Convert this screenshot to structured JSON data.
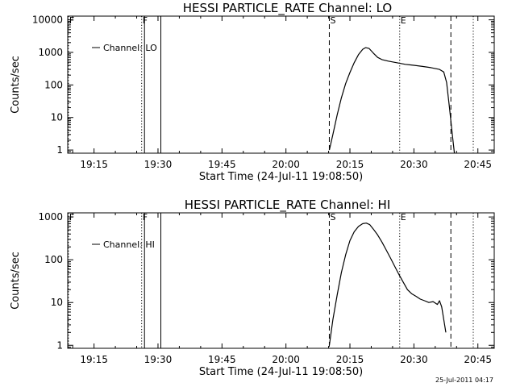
{
  "chart_data": [
    {
      "type": "line",
      "title": "HESSI PARTICLE_RATE Channel: LO",
      "xlabel": "Start Time (24-Jul-11 19:08:50)",
      "ylabel": "Counts/sec",
      "y_scale": "log",
      "ylim": [
        0.8,
        13000
      ],
      "xlim": [
        "19:08:50",
        "20:48:50"
      ],
      "x_tick_labels": [
        "19:15",
        "19:30",
        "19:45",
        "20:00",
        "20:15",
        "20:30",
        "20:45"
      ],
      "y_tick_labels": [
        "1",
        "10",
        "100",
        "1000",
        "10000"
      ],
      "legend": {
        "position": "top-left",
        "label": "Channel: LO"
      },
      "markers": [
        {
          "label": "F",
          "time": "19:09:00",
          "style": "dotted"
        },
        {
          "label": "F",
          "time": "19:26:10",
          "style": "dotted"
        },
        {
          "label": "",
          "time": "19:26:50",
          "style": "solid"
        },
        {
          "label": "",
          "time": "19:30:40",
          "style": "solid"
        },
        {
          "label": "S",
          "time": "20:10:10",
          "style": "dashed"
        },
        {
          "label": "E",
          "time": "20:26:40",
          "style": "dotted"
        },
        {
          "label": "",
          "time": "20:38:40",
          "style": "dashed"
        },
        {
          "label": "",
          "time": "20:43:55",
          "style": "dotted"
        }
      ],
      "series": [
        {
          "name": "Channel: LO",
          "x": [
            "20:10:10",
            "20:11:00",
            "20:12:00",
            "20:13:00",
            "20:14:00",
            "20:15:00",
            "20:16:00",
            "20:17:00",
            "20:18:00",
            "20:18:40",
            "20:19:30",
            "20:20:30",
            "20:21:30",
            "20:22:30",
            "20:24:00",
            "20:26:00",
            "20:28:00",
            "20:30:00",
            "20:32:00",
            "20:34:00",
            "20:36:00",
            "20:37:00",
            "20:37:40",
            "20:38:20",
            "20:39:00",
            "20:39:30"
          ],
          "y": [
            1,
            3,
            12,
            40,
            110,
            240,
            480,
            850,
            1250,
            1400,
            1320,
            950,
            700,
            600,
            540,
            480,
            430,
            400,
            370,
            340,
            300,
            250,
            120,
            20,
            3,
            0.8
          ]
        }
      ]
    },
    {
      "type": "line",
      "title": "HESSI PARTICLE_RATE Channel: HI",
      "xlabel": "Start Time (24-Jul-11 19:08:50)",
      "ylabel": "Counts/sec",
      "y_scale": "log",
      "ylim": [
        0.85,
        1250
      ],
      "xlim": [
        "19:08:50",
        "20:48:50"
      ],
      "x_tick_labels": [
        "19:15",
        "19:30",
        "19:45",
        "20:00",
        "20:15",
        "20:30",
        "20:45"
      ],
      "y_tick_labels": [
        "1",
        "10",
        "100",
        "1000"
      ],
      "legend": {
        "position": "top-left",
        "label": "Channel: HI"
      },
      "markers": [
        {
          "label": "F",
          "time": "19:09:00",
          "style": "dotted"
        },
        {
          "label": "F",
          "time": "19:26:10",
          "style": "dotted"
        },
        {
          "label": "",
          "time": "19:26:50",
          "style": "solid"
        },
        {
          "label": "",
          "time": "19:30:40",
          "style": "solid"
        },
        {
          "label": "S",
          "time": "20:10:10",
          "style": "dashed"
        },
        {
          "label": "E",
          "time": "20:26:40",
          "style": "dotted"
        },
        {
          "label": "",
          "time": "20:38:40",
          "style": "dashed"
        },
        {
          "label": "",
          "time": "20:43:55",
          "style": "dotted"
        }
      ],
      "series": [
        {
          "name": "Channel: HI",
          "x": [
            "20:10:10",
            "20:11:00",
            "20:12:00",
            "20:13:00",
            "20:14:00",
            "20:15:00",
            "20:16:00",
            "20:17:00",
            "20:18:00",
            "20:18:50",
            "20:19:40",
            "20:20:30",
            "20:21:30",
            "20:22:30",
            "20:23:30",
            "20:24:30",
            "20:25:30",
            "20:26:30",
            "20:27:30",
            "20:28:30",
            "20:29:30",
            "20:30:30",
            "20:31:30",
            "20:32:30",
            "20:33:30",
            "20:34:30",
            "20:35:30",
            "20:36:00",
            "20:36:30",
            "20:37:00",
            "20:37:30"
          ],
          "y": [
            1,
            4,
            15,
            50,
            130,
            280,
            450,
            600,
            700,
            720,
            660,
            520,
            380,
            260,
            170,
            110,
            70,
            45,
            30,
            20,
            16,
            14,
            12,
            11,
            10,
            10.5,
            9,
            11,
            8,
            4,
            2
          ]
        }
      ]
    }
  ],
  "timestamp": "25-Jul-2011 04:17"
}
